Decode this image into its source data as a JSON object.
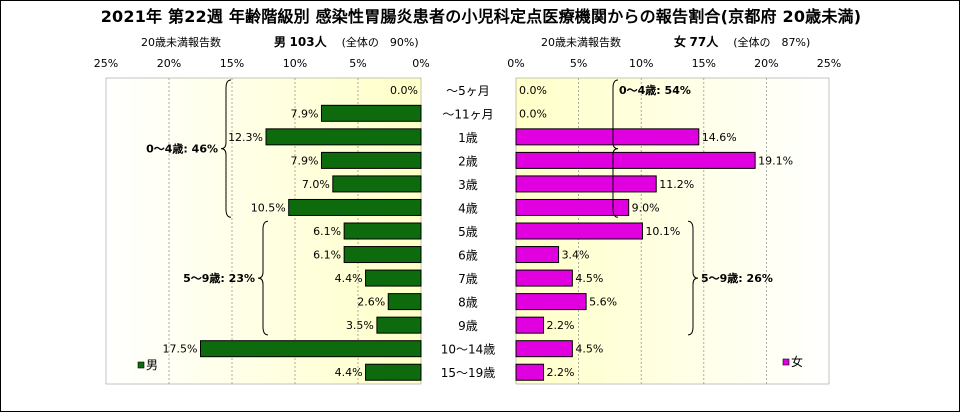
{
  "title": "2021年 第22週 年齢階級別 感染性胃腸炎患者の小児科定点医療機関からの報告割合(京都府 20歳未満)",
  "male_caption": {
    "left": "20歳未満報告数",
    "sex": "男",
    "count": "103人",
    "share": "(全体の　90%)"
  },
  "female_caption": {
    "left": "20歳未満報告数",
    "sex": "女",
    "count": "77人",
    "share": "(全体の　87%)"
  },
  "colors": {
    "male": "#0d6b0d",
    "female": "#e000e0",
    "plot_bg": "#ffffd8"
  },
  "chart_data": [
    {
      "type": "bar",
      "orientation": "horizontal",
      "direction": "right-to-left",
      "categories": [
        "～5ヶ月",
        "～11ヶ月",
        "1歳",
        "2歳",
        "3歳",
        "4歳",
        "5歳",
        "6歳",
        "7歳",
        "8歳",
        "9歳",
        "10～14歳",
        "15～19歳"
      ],
      "values": [
        0.0,
        7.9,
        12.3,
        7.9,
        7.0,
        10.5,
        6.1,
        6.1,
        4.4,
        2.6,
        3.5,
        17.5,
        4.4
      ],
      "data_labels": [
        "0.0%",
        "7.9%",
        "12.3%",
        "7.9%",
        "7.0%",
        "10.5%",
        "6.1%",
        "6.1%",
        "4.4%",
        "2.6%",
        "3.5%",
        "17.5%",
        "4.4%"
      ],
      "xlim": [
        0,
        25
      ],
      "ticks": [
        "0%",
        "5%",
        "10%",
        "15%",
        "20%",
        "25%"
      ],
      "legend": "男",
      "legend_position": "bottom-left",
      "annotations": [
        {
          "text": "0～4歳: 46%",
          "rows": [
            0,
            5
          ]
        },
        {
          "text": "5～9歳: 23%",
          "rows": [
            6,
            10
          ]
        }
      ]
    },
    {
      "type": "bar",
      "orientation": "horizontal",
      "direction": "left-to-right",
      "categories": [
        "～5ヶ月",
        "～11ヶ月",
        "1歳",
        "2歳",
        "3歳",
        "4歳",
        "5歳",
        "6歳",
        "7歳",
        "8歳",
        "9歳",
        "10～14歳",
        "15～19歳"
      ],
      "values": [
        0.0,
        0.0,
        14.6,
        19.1,
        11.2,
        9.0,
        10.1,
        3.4,
        4.5,
        5.6,
        2.2,
        4.5,
        2.2
      ],
      "data_labels": [
        "0.0%",
        "0.0%",
        "14.6%",
        "19.1%",
        "11.2%",
        "9.0%",
        "10.1%",
        "3.4%",
        "4.5%",
        "5.6%",
        "2.2%",
        "4.5%",
        "2.2%"
      ],
      "xlim": [
        0,
        25
      ],
      "ticks": [
        "0%",
        "5%",
        "10%",
        "15%",
        "20%",
        "25%"
      ],
      "legend": "女",
      "legend_position": "bottom-right",
      "annotations": [
        {
          "text": "0～4歳: 54%",
          "rows": [
            0,
            5
          ]
        },
        {
          "text": "5～9歳: 26%",
          "rows": [
            6,
            10
          ]
        }
      ]
    }
  ]
}
